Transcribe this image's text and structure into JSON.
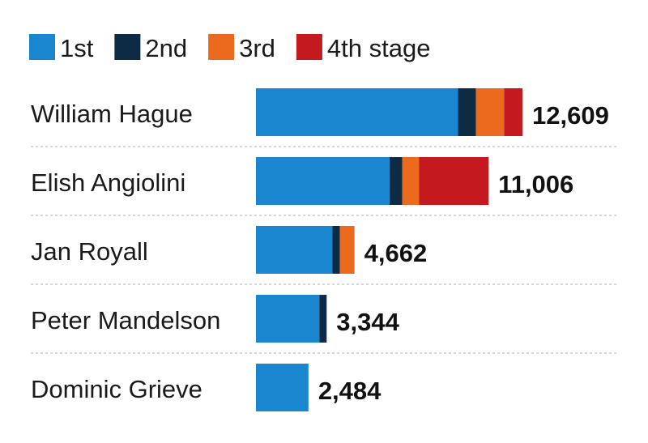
{
  "chart_data": {
    "type": "bar",
    "orientation": "horizontal",
    "stacked": true,
    "title": "",
    "xlabel": "",
    "ylabel": "",
    "grid": false,
    "legend_position": "top-left",
    "categories": [
      "William Hague",
      "Elish Angiolini",
      "Jan Royall",
      "Peter Mandelson",
      "Dominic Grieve"
    ],
    "totals": [
      "12,609",
      "11,006",
      "4,662",
      "3,344",
      "2,484"
    ],
    "total_values": [
      12609,
      11006,
      4662,
      3344,
      2484
    ],
    "series": [
      {
        "name": "1st",
        "color": "#1a86d0",
        "values": [
          9560,
          6320,
          3620,
          3000,
          2484
        ]
      },
      {
        "name": "2nd",
        "color": "#0e2b45",
        "values": [
          850,
          600,
          350,
          344,
          0
        ]
      },
      {
        "name": "3rd",
        "color": "#ec6a1d",
        "values": [
          1330,
          790,
          692,
          0,
          0
        ]
      },
      {
        "name": "4th stage",
        "color": "#c41a1f",
        "values": [
          869,
          3296,
          0,
          0,
          0
        ]
      }
    ],
    "xlim": [
      0,
      12609
    ]
  }
}
